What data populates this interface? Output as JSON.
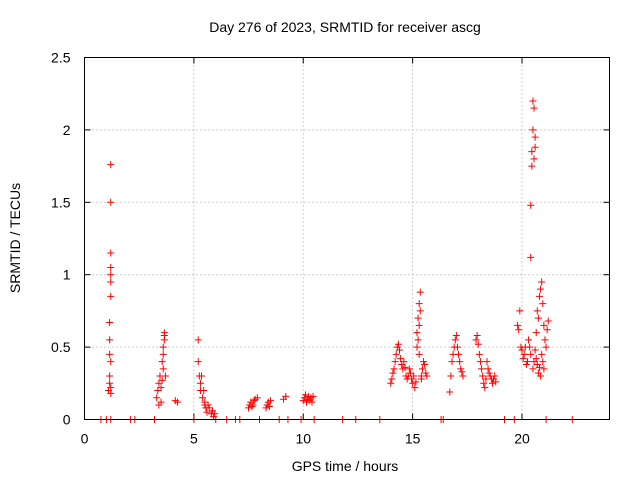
{
  "chart_data": {
    "type": "scatter",
    "title": "Day 276 of 2023, SRMTID for receiver ascg",
    "xlabel": "GPS time / hours",
    "ylabel": "SRMTID / TECUs",
    "xlim": [
      0,
      24
    ],
    "ylim": [
      0,
      2.5
    ],
    "xticks": [
      0,
      5,
      10,
      15,
      20
    ],
    "xtick_labels": [
      "0",
      "5",
      "10",
      "15",
      "20"
    ],
    "yticks": [
      0,
      0.5,
      1,
      1.5,
      2,
      2.5
    ],
    "ytick_labels": [
      "0",
      "0.5",
      "1",
      "1.5",
      "2",
      "2.5"
    ],
    "grid": true,
    "marker": "plus",
    "color": "#ff0000",
    "series": [
      {
        "name": "SRMTID",
        "x": [
          0.75,
          1.0,
          1.1,
          1.15,
          1.15,
          1.15,
          1.15,
          1.15,
          1.2,
          1.2,
          1.2,
          1.2,
          1.2,
          1.2,
          1.2,
          1.2,
          1.2,
          1.2,
          1.2,
          2.1,
          2.3,
          3.2,
          3.3,
          3.35,
          3.4,
          3.4,
          3.45,
          3.5,
          3.5,
          3.55,
          3.55,
          3.6,
          3.6,
          3.6,
          3.65,
          3.65,
          3.65,
          3.7,
          4.15,
          4.25,
          5.0,
          5.2,
          5.2,
          5.25,
          5.3,
          5.3,
          5.35,
          5.4,
          5.45,
          5.5,
          5.5,
          5.55,
          5.6,
          5.65,
          5.7,
          5.8,
          5.85,
          5.9,
          5.95,
          6.0,
          6.5,
          6.9,
          7.1,
          7.5,
          7.55,
          7.6,
          7.65,
          7.7,
          7.75,
          7.8,
          7.9,
          8.0,
          8.3,
          8.35,
          8.4,
          8.45,
          8.5,
          8.9,
          9.1,
          9.2,
          9.3,
          9.9,
          10.0,
          10.05,
          10.1,
          10.15,
          10.2,
          10.25,
          10.3,
          10.35,
          10.4,
          10.45,
          10.5,
          11.8,
          12.4,
          13.5,
          14.0,
          14.05,
          14.1,
          14.15,
          14.2,
          14.25,
          14.3,
          14.35,
          14.4,
          14.45,
          14.5,
          14.55,
          14.6,
          14.65,
          14.7,
          14.75,
          14.8,
          14.85,
          14.9,
          14.95,
          15.0,
          15.05,
          15.1,
          15.15,
          15.2,
          15.25,
          15.3,
          15.35,
          15.4,
          15.45,
          15.5,
          15.55,
          15.6,
          15.65,
          15.2,
          15.25,
          15.3,
          15.35,
          15.3,
          15.4,
          16.3,
          16.4,
          16.7,
          16.75,
          16.8,
          16.85,
          16.9,
          16.95,
          17.0,
          17.05,
          17.1,
          17.15,
          17.2,
          17.25,
          17.3,
          17.9,
          17.95,
          18.0,
          18.05,
          18.1,
          18.15,
          18.2,
          18.25,
          18.3,
          18.35,
          18.4,
          18.45,
          18.5,
          18.55,
          18.6,
          18.65,
          18.7,
          18.75,
          18.8,
          19.2,
          19.65,
          19.8,
          19.85,
          19.9,
          19.95,
          20.0,
          20.05,
          20.1,
          20.15,
          20.2,
          20.25,
          20.3,
          20.35,
          20.4,
          20.4,
          20.4,
          20.45,
          20.45,
          20.5,
          20.5,
          20.55,
          20.55,
          20.6,
          20.6,
          20.65,
          20.7,
          20.75,
          20.8,
          20.85,
          20.9,
          20.95,
          21.0,
          21.05,
          21.1,
          21.15,
          21.2,
          20.5,
          20.55,
          20.6,
          20.65,
          20.7,
          20.75,
          20.8,
          20.85,
          20.9,
          20.95,
          21.0,
          21.1,
          22.3
        ],
        "y": [
          0.0,
          0.0,
          0.2,
          0.25,
          0.3,
          0.45,
          0.55,
          0.67,
          0.85,
          0.95,
          1.0,
          1.05,
          1.15,
          1.5,
          1.76,
          0.4,
          0.22,
          0.18,
          0.0,
          0.0,
          0.0,
          0.0,
          0.15,
          0.2,
          0.25,
          0.1,
          0.3,
          0.12,
          0.22,
          0.27,
          0.4,
          0.35,
          0.45,
          0.5,
          0.55,
          0.58,
          0.6,
          0.3,
          0.13,
          0.12,
          0.0,
          0.55,
          0.4,
          0.3,
          0.25,
          0.2,
          0.3,
          0.15,
          0.2,
          0.12,
          0.1,
          0.08,
          0.05,
          0.1,
          0.08,
          0.04,
          0.06,
          0.02,
          0.04,
          0.0,
          0.0,
          0.0,
          0.0,
          0.08,
          0.1,
          0.12,
          0.09,
          0.1,
          0.13,
          0.14,
          0.15,
          0.0,
          0.08,
          0.1,
          0.12,
          0.09,
          0.13,
          0.0,
          0.14,
          0.16,
          0.0,
          0.0,
          0.13,
          0.15,
          0.17,
          0.12,
          0.14,
          0.16,
          0.13,
          0.15,
          0.12,
          0.16,
          0.0,
          0.0,
          0.0,
          0.0,
          0.25,
          0.28,
          0.32,
          0.35,
          0.4,
          0.45,
          0.5,
          0.52,
          0.48,
          0.42,
          0.38,
          0.35,
          0.4,
          0.36,
          0.3,
          0.28,
          0.3,
          0.35,
          0.32,
          0.28,
          0.25,
          0.3,
          0.22,
          0.26,
          0.6,
          0.7,
          0.8,
          0.88,
          0.3,
          0.35,
          0.4,
          0.38,
          0.32,
          0.3,
          0.5,
          0.55,
          0.65,
          0.75,
          0.45,
          0.28,
          0.0,
          0.0,
          0.19,
          0.3,
          0.4,
          0.45,
          0.5,
          0.55,
          0.58,
          0.5,
          0.45,
          0.4,
          0.35,
          0.33,
          0.3,
          0.55,
          0.58,
          0.52,
          0.45,
          0.4,
          0.35,
          0.3,
          0.25,
          0.22,
          0.28,
          0.4,
          0.35,
          0.32,
          0.3,
          0.28,
          0.25,
          0.28,
          0.3,
          0.26,
          0.0,
          0.0,
          0.65,
          0.62,
          0.75,
          0.5,
          0.48,
          0.42,
          0.45,
          0.5,
          0.38,
          0.4,
          0.55,
          0.5,
          0.45,
          1.12,
          1.48,
          1.75,
          1.85,
          2.0,
          2.2,
          2.15,
          1.8,
          1.95,
          1.88,
          0.6,
          0.75,
          0.7,
          0.85,
          0.9,
          0.95,
          0.8,
          0.65,
          0.55,
          0.5,
          0.62,
          0.68,
          0.35,
          0.4,
          0.48,
          0.42,
          0.38,
          0.32,
          0.36,
          0.3,
          0.45,
          0.4,
          0.35,
          0.0,
          0.0
        ]
      }
    ]
  }
}
